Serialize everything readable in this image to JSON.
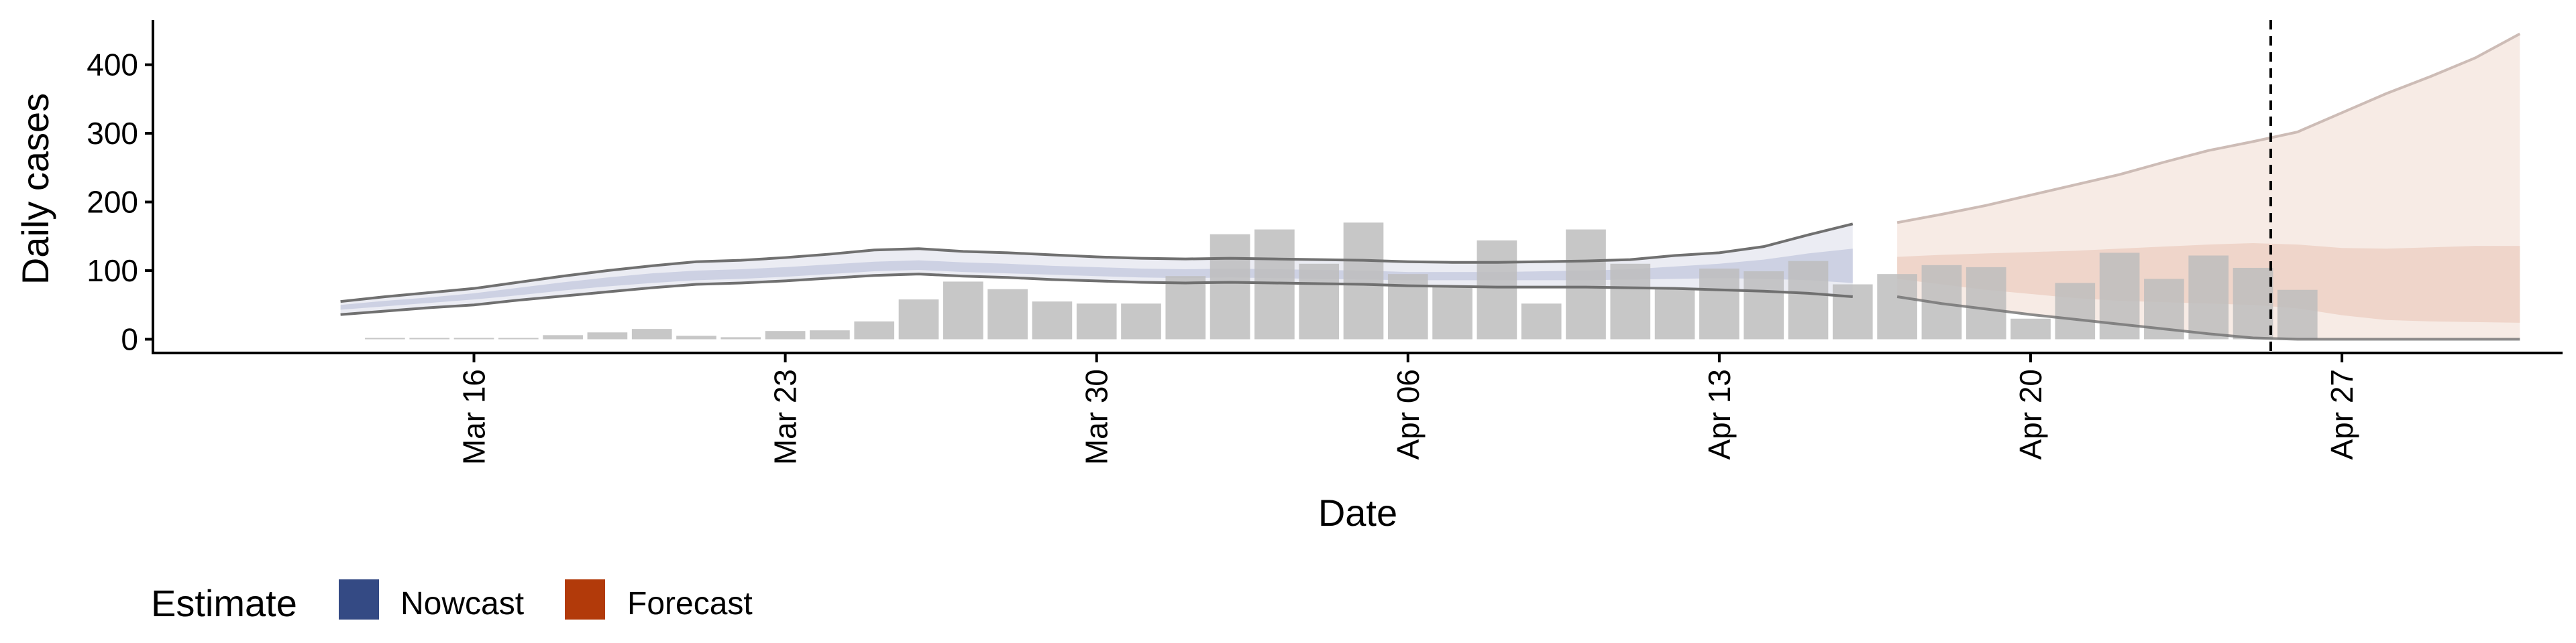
{
  "chart_data": {
    "type": "bar",
    "xlabel": "Date",
    "ylabel": "Daily cases",
    "ylim": [
      -20,
      465
    ],
    "yticks": [
      0,
      100,
      200,
      300,
      400
    ],
    "x_start": "Mar 11",
    "x_end": "May 02",
    "xticks": [
      {
        "day": 5,
        "label": "Mar 16"
      },
      {
        "day": 12,
        "label": "Mar 23"
      },
      {
        "day": 19,
        "label": "Mar 30"
      },
      {
        "day": 26,
        "label": "Apr 06"
      },
      {
        "day": 33,
        "label": "Apr 13"
      },
      {
        "day": 40,
        "label": "Apr 20"
      },
      {
        "day": 47,
        "label": "Apr 27"
      }
    ],
    "bars": {
      "first_day": 3,
      "values": [
        0,
        0,
        2,
        1,
        6,
        10,
        15,
        5,
        3,
        12,
        13,
        26,
        58,
        84,
        73,
        55,
        52,
        52,
        92,
        153,
        160,
        110,
        170,
        95,
        78,
        144,
        52,
        160,
        110,
        75,
        103,
        99,
        114,
        80,
        95,
        108,
        105,
        30,
        82,
        126,
        88,
        122,
        104,
        72
      ]
    },
    "nowcast_band": {
      "first_day": 2,
      "upper": [
        55,
        62,
        68,
        74,
        83,
        92,
        100,
        107,
        113,
        115,
        119,
        124,
        130,
        132,
        128,
        126,
        123,
        120,
        118,
        117,
        118,
        117,
        116,
        115,
        113,
        112,
        112,
        113,
        114,
        116,
        122,
        126,
        135,
        152,
        168
      ],
      "inner_upper": [
        50,
        56,
        61,
        67,
        75,
        83,
        90,
        96,
        100,
        102,
        105,
        109,
        113,
        115,
        112,
        110,
        107,
        105,
        103,
        102,
        103,
        102,
        101,
        100,
        98,
        98,
        98,
        99,
        100,
        102,
        106,
        110,
        116,
        125,
        132
      ],
      "inner_lower": [
        43,
        48,
        53,
        58,
        64,
        71,
        77,
        82,
        86,
        88,
        91,
        95,
        99,
        101,
        98,
        96,
        94,
        92,
        90,
        89,
        90,
        89,
        88,
        87,
        86,
        86,
        86,
        86,
        86,
        87,
        88,
        89,
        88,
        86,
        82
      ],
      "lower": [
        36,
        41,
        46,
        50,
        57,
        63,
        69,
        75,
        80,
        82,
        85,
        89,
        93,
        95,
        92,
        90,
        87,
        85,
        83,
        82,
        83,
        82,
        81,
        80,
        78,
        77,
        76,
        76,
        76,
        75,
        74,
        72,
        70,
        67,
        62
      ]
    },
    "forecast_band": {
      "first_day": 37,
      "upper": [
        170,
        182,
        195,
        210,
        225,
        240,
        258,
        275,
        288,
        302,
        330,
        358,
        383,
        410,
        445
      ],
      "inner_upper": [
        120,
        123,
        125,
        127,
        129,
        132,
        135,
        138,
        140,
        138,
        133,
        132,
        134,
        136,
        136
      ],
      "inner_lower": [
        88,
        80,
        72,
        66,
        60,
        56,
        54,
        52,
        50,
        45,
        35,
        28,
        26,
        25,
        24
      ],
      "lower": [
        62,
        52,
        44,
        36,
        29,
        22,
        15,
        8,
        2,
        0,
        0,
        0,
        0,
        0,
        0
      ]
    },
    "vline_day": 45.4,
    "legend": {
      "title": "Estimate",
      "position": "bottom-left",
      "items": [
        {
          "label": "Nowcast",
          "color": "#344a84"
        },
        {
          "label": "Forecast",
          "color": "#b23a0a"
        }
      ]
    },
    "colors": {
      "bar": "#bdbdbd",
      "nowcast_outer": "#dadde9",
      "nowcast_inner": "#c3c8dd",
      "nowcast_line": "#707070",
      "forecast_outer": "#f7eae4",
      "forecast_inner": "#ecd0c3",
      "forecast_line": "#cdbcb6"
    }
  }
}
